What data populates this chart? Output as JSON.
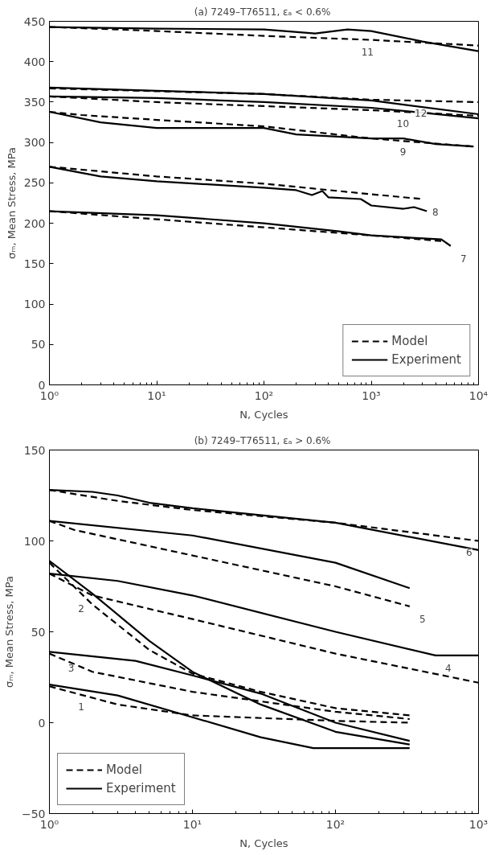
{
  "chart_data": [
    {
      "type": "line",
      "title": "(a) 7249–T76511,  εₐ < 0.6%",
      "xlabel": "N, Cycles",
      "ylabel": "σₘ, Mean Stress, MPa",
      "log": "x",
      "xlim": [
        1,
        10000
      ],
      "ylim": [
        0,
        450
      ],
      "xticks": [
        {
          "value": 1,
          "label": "10⁰"
        },
        {
          "value": 10,
          "label": "10¹"
        },
        {
          "value": 100,
          "label": "10²"
        },
        {
          "value": 1000,
          "label": "10³"
        },
        {
          "value": 10000,
          "label": "10⁴"
        }
      ],
      "yticks": [
        0,
        50,
        100,
        150,
        200,
        250,
        300,
        350,
        400,
        450
      ],
      "grid": false,
      "legend": "bottom right",
      "series": [
        {
          "name": "Model",
          "color": "#000000",
          "line_style": "dashed",
          "x": [
            1,
            10,
            100,
            1000,
            10000
          ],
          "values": [
            443,
            438,
            432,
            427,
            420
          ]
        },
        {
          "name": "Experiment",
          "color": "#000000",
          "line_style": "solid",
          "x": [
            1,
            10,
            100,
            300,
            600,
            1000,
            3000,
            10000
          ],
          "values": [
            443,
            441,
            440,
            435,
            440,
            438,
            425,
            413
          ]
        },
        {
          "color": "#000000",
          "line_style": "dashed",
          "x": [
            1,
            100,
            1000,
            10000
          ],
          "values": [
            367,
            360,
            353,
            350
          ]
        },
        {
          "color": "#000000",
          "line_style": "solid",
          "x": [
            1,
            10,
            100,
            1000,
            10000
          ],
          "values": [
            368,
            364,
            360,
            352,
            335
          ]
        },
        {
          "color": "#000000",
          "line_style": "dashed",
          "x": [
            1,
            10,
            100,
            1000,
            10000
          ],
          "values": [
            357,
            350,
            345,
            340,
            333
          ]
        },
        {
          "color": "#000000",
          "line_style": "solid",
          "x": [
            1,
            10,
            100,
            1000,
            10000
          ],
          "values": [
            357,
            355,
            350,
            343,
            330
          ]
        },
        {
          "color": "#000000",
          "line_style": "dashed",
          "x": [
            1,
            2,
            10,
            100,
            1000,
            3000,
            9000
          ],
          "values": [
            338,
            334,
            328,
            320,
            305,
            300,
            295
          ]
        },
        {
          "color": "#000000",
          "line_style": "solid",
          "x": [
            1,
            3,
            10,
            100,
            200,
            1000,
            2000,
            4000,
            9000
          ],
          "values": [
            338,
            325,
            318,
            318,
            310,
            305,
            305,
            298,
            295
          ]
        },
        {
          "color": "#000000",
          "line_style": "dashed",
          "x": [
            1,
            10,
            100,
            1000,
            3000
          ],
          "values": [
            270,
            258,
            249,
            236,
            230
          ]
        },
        {
          "color": "#000000",
          "line_style": "solid",
          "x": [
            1,
            3,
            10,
            100,
            200,
            280,
            350,
            400,
            800,
            1000,
            2000,
            2500,
            3300
          ],
          "values": [
            270,
            258,
            252,
            244,
            241,
            235,
            240,
            232,
            230,
            222,
            218,
            220,
            215
          ]
        },
        {
          "color": "#000000",
          "line_style": "dashed",
          "x": [
            1,
            10,
            100,
            1000,
            4500
          ],
          "values": [
            215,
            205,
            195,
            185,
            178
          ]
        },
        {
          "color": "#000000",
          "line_style": "solid",
          "x": [
            1,
            10,
            100,
            500,
            1000,
            4500,
            5500
          ],
          "values": [
            215,
            210,
            200,
            190,
            185,
            180,
            172
          ]
        }
      ],
      "annotations": [
        {
          "text": "11",
          "x": 700,
          "y": 428
        },
        {
          "text": "12",
          "x": 2200,
          "y": 352
        },
        {
          "text": "10",
          "x": 1500,
          "y": 339
        },
        {
          "text": "9",
          "x": 1500,
          "y": 305
        },
        {
          "text": "8",
          "x": 3000,
          "y": 230
        },
        {
          "text": "7",
          "x": 5500,
          "y": 172
        }
      ]
    },
    {
      "type": "line",
      "title": "(b) 7249–T76511,  εₐ > 0.6%",
      "xlabel": "N, Cycles",
      "ylabel": "σₘ, Mean Stress, MPa",
      "log": "x",
      "xlim": [
        1,
        1000
      ],
      "ylim": [
        -50,
        150
      ],
      "xticks": [
        {
          "value": 1,
          "label": "10⁰"
        },
        {
          "value": 10,
          "label": "10¹"
        },
        {
          "value": 100,
          "label": "10²"
        },
        {
          "value": 1000,
          "label": "10³"
        }
      ],
      "yticks": [
        -50,
        0,
        50,
        100,
        150
      ],
      "grid": false,
      "legend": "bottom left",
      "series": [
        {
          "name": "Model",
          "color": "#000000",
          "line_style": "dashed",
          "x": [
            1,
            3,
            10,
            100,
            1000
          ],
          "values": [
            128,
            122,
            117,
            110,
            100
          ]
        },
        {
          "name": "Experiment",
          "color": "#000000",
          "line_style": "solid",
          "x": [
            1,
            2,
            3,
            5,
            10,
            100,
            1000
          ],
          "values": [
            128,
            127,
            125,
            121,
            118,
            110,
            95
          ]
        },
        {
          "color": "#000000",
          "line_style": "dashed",
          "x": [
            1,
            1.5,
            10,
            100,
            330
          ],
          "values": [
            111,
            106,
            92,
            75,
            64
          ]
        },
        {
          "color": "#000000",
          "line_style": "solid",
          "x": [
            1,
            10,
            100,
            330
          ],
          "values": [
            111,
            103,
            88,
            74
          ]
        },
        {
          "color": "#000000",
          "line_style": "dashed",
          "x": [
            1,
            2,
            10,
            100,
            1000
          ],
          "values": [
            82,
            70,
            57,
            38,
            22
          ]
        },
        {
          "color": "#000000",
          "line_style": "solid",
          "x": [
            1,
            3,
            10,
            100,
            500,
            1000
          ],
          "values": [
            82,
            78,
            70,
            50,
            37,
            37
          ]
        },
        {
          "color": "#000000",
          "line_style": "dashed",
          "x": [
            1,
            2,
            5,
            10,
            30,
            100,
            330
          ],
          "values": [
            88,
            65,
            40,
            27,
            17,
            8,
            4
          ]
        },
        {
          "color": "#000000",
          "line_style": "solid",
          "x": [
            1,
            2,
            5,
            10,
            30,
            100,
            330
          ],
          "values": [
            89,
            71,
            45,
            28,
            10,
            -5,
            -12
          ]
        },
        {
          "color": "#000000",
          "line_style": "dashed",
          "x": [
            1,
            2,
            10,
            100,
            330
          ],
          "values": [
            38,
            28,
            17,
            6,
            2
          ]
        },
        {
          "color": "#000000",
          "line_style": "solid",
          "x": [
            1,
            4,
            10,
            30,
            100,
            330
          ],
          "values": [
            39,
            34,
            26,
            16,
            0,
            -10
          ]
        },
        {
          "color": "#000000",
          "line_style": "dashed",
          "x": [
            1,
            3,
            10,
            100,
            330
          ],
          "values": [
            20,
            10,
            4,
            1,
            0
          ]
        },
        {
          "color": "#000000",
          "line_style": "solid",
          "x": [
            1,
            3,
            10,
            30,
            70,
            330
          ],
          "values": [
            21,
            15,
            3,
            -8,
            -14,
            -14
          ]
        }
      ],
      "annotations": [
        {
          "text": "6",
          "x": 700,
          "y": 101
        },
        {
          "text": "5",
          "x": 330,
          "y": 64
        },
        {
          "text": "4",
          "x": 500,
          "y": 37
        },
        {
          "text": "2",
          "x": 2,
          "y": 70
        },
        {
          "text": "3",
          "x": 1.7,
          "y": 37
        },
        {
          "text": "1",
          "x": 2,
          "y": 16
        }
      ]
    }
  ]
}
